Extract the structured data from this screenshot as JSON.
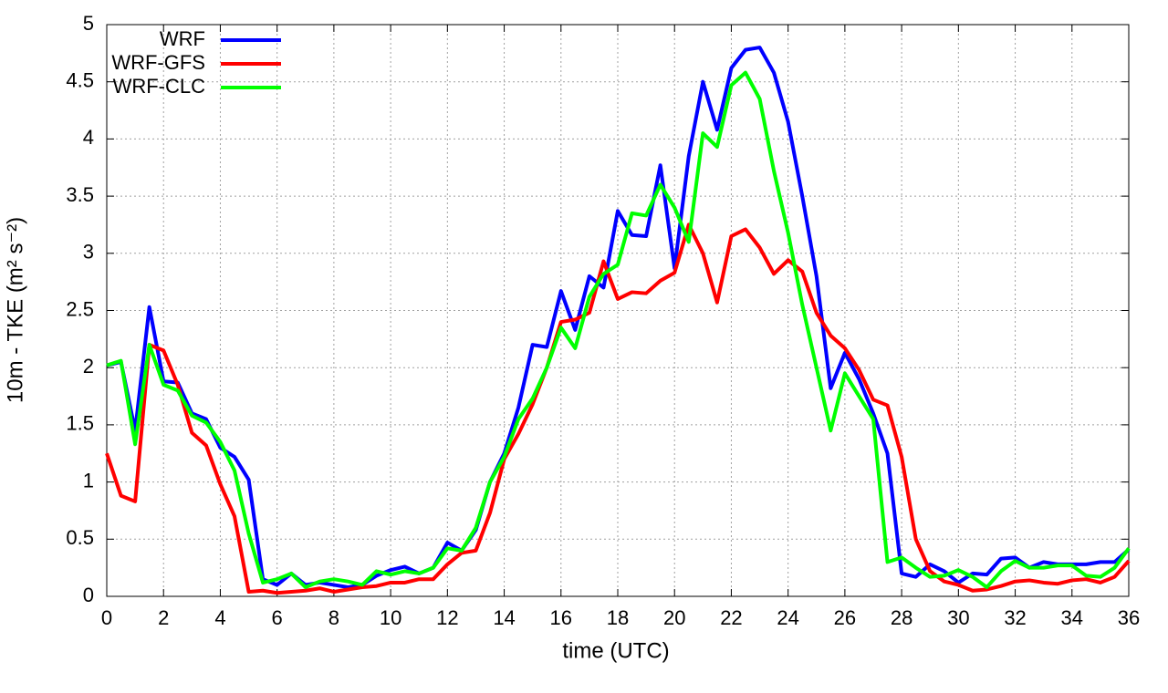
{
  "chart_data": {
    "type": "line",
    "xlabel": "time (UTC)",
    "ylabel": "10m - TKE (m² s⁻²)",
    "x": [
      0,
      0.5,
      1,
      1.5,
      2,
      2.5,
      3,
      3.5,
      4,
      4.5,
      5,
      5.5,
      6,
      6.5,
      7,
      7.5,
      8,
      8.5,
      9,
      9.5,
      10,
      10.5,
      11,
      11.5,
      12,
      12.5,
      13,
      13.5,
      14,
      14.5,
      15,
      15.5,
      16,
      16.5,
      17,
      17.5,
      18,
      18.5,
      19,
      19.5,
      20,
      20.5,
      21,
      21.5,
      22,
      22.5,
      23,
      23.5,
      24,
      24.5,
      25,
      25.5,
      26,
      26.5,
      27,
      27.5,
      28,
      28.5,
      29,
      29.5,
      30,
      30.5,
      31,
      31.5,
      32,
      32.5,
      33,
      33.5,
      34,
      34.5,
      35,
      35.5,
      36
    ],
    "series": [
      {
        "name": "WRF",
        "color": "#0000ff",
        "values": [
          2.02,
          2.05,
          1.45,
          2.53,
          1.88,
          1.87,
          1.6,
          1.55,
          1.3,
          1.22,
          1.02,
          0.15,
          0.1,
          0.2,
          0.1,
          0.12,
          0.1,
          0.08,
          0.1,
          0.18,
          0.23,
          0.26,
          0.2,
          0.25,
          0.47,
          0.4,
          0.58,
          1.0,
          1.25,
          1.65,
          2.2,
          2.18,
          2.67,
          2.33,
          2.8,
          2.7,
          3.37,
          3.16,
          3.15,
          3.77,
          2.87,
          3.85,
          4.5,
          4.08,
          4.62,
          4.78,
          4.8,
          4.58,
          4.15,
          3.5,
          2.8,
          1.82,
          2.13,
          1.9,
          1.6,
          1.25,
          0.2,
          0.17,
          0.28,
          0.22,
          0.12,
          0.2,
          0.19,
          0.33,
          0.34,
          0.25,
          0.3,
          0.28,
          0.28,
          0.28,
          0.3,
          0.3,
          0.41
        ]
      },
      {
        "name": "WRF-GFS",
        "color": "#ff0000",
        "values": [
          1.25,
          0.88,
          0.83,
          2.2,
          2.15,
          1.85,
          1.43,
          1.32,
          0.98,
          0.7,
          0.04,
          0.05,
          0.03,
          0.04,
          0.05,
          0.07,
          0.04,
          0.06,
          0.08,
          0.09,
          0.12,
          0.12,
          0.15,
          0.15,
          0.28,
          0.38,
          0.4,
          0.73,
          1.2,
          1.42,
          1.68,
          2.0,
          2.4,
          2.42,
          2.48,
          2.93,
          2.6,
          2.66,
          2.65,
          2.76,
          2.83,
          3.25,
          3.0,
          2.57,
          3.15,
          3.21,
          3.05,
          2.82,
          2.94,
          2.84,
          2.48,
          2.28,
          2.17,
          1.98,
          1.72,
          1.67,
          1.22,
          0.5,
          0.22,
          0.13,
          0.1,
          0.05,
          0.06,
          0.09,
          0.13,
          0.14,
          0.12,
          0.11,
          0.14,
          0.15,
          0.12,
          0.17,
          0.31
        ]
      },
      {
        "name": "WRF-CLC",
        "color": "#00ff00",
        "values": [
          2.02,
          2.06,
          1.33,
          2.2,
          1.85,
          1.8,
          1.58,
          1.52,
          1.35,
          1.1,
          0.55,
          0.12,
          0.15,
          0.2,
          0.08,
          0.13,
          0.15,
          0.13,
          0.1,
          0.22,
          0.19,
          0.22,
          0.2,
          0.25,
          0.42,
          0.4,
          0.6,
          1.0,
          1.22,
          1.55,
          1.73,
          2.0,
          2.35,
          2.17,
          2.62,
          2.82,
          2.9,
          3.35,
          3.33,
          3.6,
          3.4,
          3.1,
          4.05,
          3.93,
          4.47,
          4.58,
          4.35,
          3.72,
          3.18,
          2.55,
          2.0,
          1.45,
          1.95,
          1.75,
          1.55,
          0.3,
          0.34,
          0.25,
          0.17,
          0.18,
          0.23,
          0.17,
          0.08,
          0.22,
          0.31,
          0.25,
          0.25,
          0.27,
          0.27,
          0.18,
          0.17,
          0.25,
          0.42
        ]
      }
    ],
    "xlim": [
      0,
      36
    ],
    "xticks": [
      0,
      2,
      4,
      6,
      8,
      10,
      12,
      14,
      16,
      18,
      20,
      22,
      24,
      26,
      28,
      30,
      32,
      34,
      36
    ],
    "ylim": [
      0,
      5
    ],
    "yticks": [
      0,
      0.5,
      1,
      1.5,
      2,
      2.5,
      3,
      3.5,
      4,
      4.5,
      5
    ],
    "grid": true,
    "legend": "top-left"
  }
}
